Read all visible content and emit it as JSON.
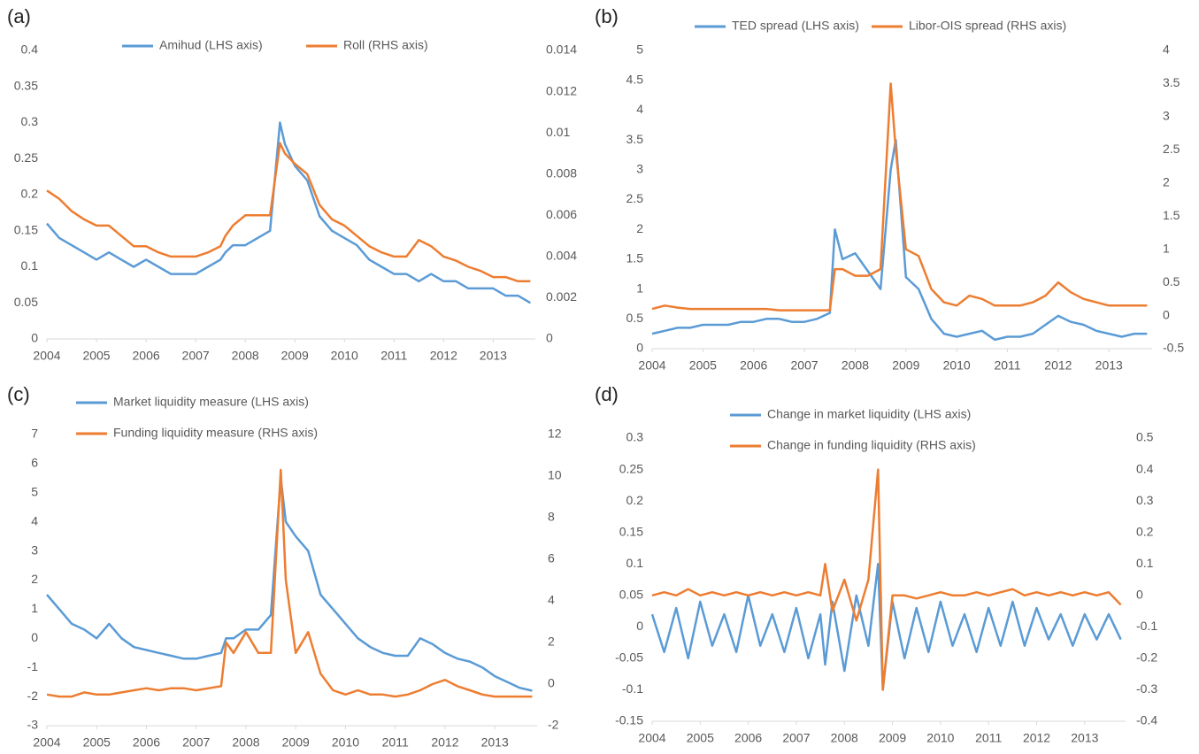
{
  "chart_data": [
    {
      "type": "line",
      "label": "(a)",
      "xlim": [
        2004,
        2013.85
      ],
      "xticks": [
        2004,
        2005,
        2006,
        2007,
        2008,
        2009,
        2010,
        2011,
        2012,
        2013
      ],
      "ylim": [
        0,
        0.4
      ],
      "yticks": [
        0,
        0.05,
        0.1,
        0.15,
        0.2,
        0.25,
        0.3,
        0.35,
        0.4
      ],
      "y2lim": [
        0,
        0.014
      ],
      "y2ticks": [
        0,
        0.002,
        0.004,
        0.006,
        0.008,
        0.01,
        0.012,
        0.014
      ],
      "x": [
        2004,
        2004.25,
        2004.5,
        2004.75,
        2005,
        2005.25,
        2005.5,
        2005.75,
        2006,
        2006.25,
        2006.5,
        2006.75,
        2007,
        2007.25,
        2007.5,
        2007.6,
        2007.75,
        2008,
        2008.25,
        2008.5,
        2008.7,
        2008.8,
        2009,
        2009.25,
        2009.5,
        2009.75,
        2010,
        2010.25,
        2010.5,
        2010.75,
        2011,
        2011.25,
        2011.5,
        2011.75,
        2012,
        2012.25,
        2012.5,
        2012.75,
        2013,
        2013.25,
        2013.5,
        2013.75
      ],
      "series": [
        {
          "name": "Amihud (LHS axis)",
          "color": "#5b9bd5",
          "values": [
            0.16,
            0.14,
            0.13,
            0.12,
            0.11,
            0.12,
            0.11,
            0.1,
            0.11,
            0.1,
            0.09,
            0.09,
            0.09,
            0.1,
            0.11,
            0.12,
            0.13,
            0.13,
            0.14,
            0.15,
            0.3,
            0.27,
            0.24,
            0.22,
            0.17,
            0.15,
            0.14,
            0.13,
            0.11,
            0.1,
            0.09,
            0.09,
            0.08,
            0.09,
            0.08,
            0.08,
            0.07,
            0.07,
            0.07,
            0.06,
            0.06,
            0.05
          ]
        },
        {
          "name": "Roll (RHS axis)",
          "color": "#ed7d31",
          "axis": "y2",
          "values": [
            0.0072,
            0.0068,
            0.0062,
            0.0058,
            0.0055,
            0.0055,
            0.005,
            0.0045,
            0.0045,
            0.0042,
            0.004,
            0.004,
            0.004,
            0.0042,
            0.0045,
            0.005,
            0.0055,
            0.006,
            0.006,
            0.006,
            0.0095,
            0.009,
            0.0085,
            0.008,
            0.0065,
            0.0058,
            0.0055,
            0.005,
            0.0045,
            0.0042,
            0.004,
            0.004,
            0.0048,
            0.0045,
            0.004,
            0.0038,
            0.0035,
            0.0033,
            0.003,
            0.003,
            0.0028,
            0.0028
          ]
        }
      ]
    },
    {
      "type": "line",
      "label": "(b)",
      "xlim": [
        2004,
        2013.85
      ],
      "xticks": [
        2004,
        2005,
        2006,
        2007,
        2008,
        2009,
        2010,
        2011,
        2012,
        2013
      ],
      "ylim": [
        0,
        5
      ],
      "yticks": [
        0,
        0.5,
        1,
        1.5,
        2,
        2.5,
        3,
        3.5,
        4,
        4.5,
        5
      ],
      "y2lim": [
        -0.5,
        4
      ],
      "y2ticks": [
        -0.5,
        0,
        0.5,
        1,
        1.5,
        2,
        2.5,
        3,
        3.5,
        4
      ],
      "x": [
        2004,
        2004.25,
        2004.5,
        2004.75,
        2005,
        2005.25,
        2005.5,
        2005.75,
        2006,
        2006.25,
        2006.5,
        2006.75,
        2007,
        2007.25,
        2007.5,
        2007.6,
        2007.75,
        2008,
        2008.25,
        2008.5,
        2008.7,
        2008.8,
        2009,
        2009.25,
        2009.5,
        2009.75,
        2010,
        2010.25,
        2010.5,
        2010.75,
        2011,
        2011.25,
        2011.5,
        2011.75,
        2012,
        2012.25,
        2012.5,
        2012.75,
        2013,
        2013.25,
        2013.5,
        2013.75
      ],
      "series": [
        {
          "name": "TED spread (LHS axis)",
          "color": "#5b9bd5",
          "values": [
            0.25,
            0.3,
            0.35,
            0.35,
            0.4,
            0.4,
            0.4,
            0.45,
            0.45,
            0.5,
            0.5,
            0.45,
            0.45,
            0.5,
            0.6,
            2.0,
            1.5,
            1.6,
            1.3,
            1.0,
            3.0,
            3.5,
            1.2,
            1.0,
            0.5,
            0.25,
            0.2,
            0.25,
            0.3,
            0.15,
            0.2,
            0.2,
            0.25,
            0.4,
            0.55,
            0.45,
            0.4,
            0.3,
            0.25,
            0.2,
            0.25,
            0.25
          ]
        },
        {
          "name": "Libor-OIS spread (RHS axis)",
          "color": "#ed7d31",
          "axis": "y2",
          "values": [
            0.1,
            0.15,
            0.12,
            0.1,
            0.1,
            0.1,
            0.1,
            0.1,
            0.1,
            0.1,
            0.08,
            0.08,
            0.08,
            0.08,
            0.08,
            0.7,
            0.7,
            0.6,
            0.6,
            0.7,
            3.5,
            2.5,
            1.0,
            0.9,
            0.4,
            0.2,
            0.15,
            0.3,
            0.25,
            0.15,
            0.15,
            0.15,
            0.2,
            0.3,
            0.5,
            0.35,
            0.25,
            0.2,
            0.15,
            0.15,
            0.15,
            0.15
          ]
        }
      ]
    },
    {
      "type": "line",
      "label": "(c)",
      "xlim": [
        2004,
        2013.85
      ],
      "xticks": [
        2004,
        2005,
        2006,
        2007,
        2008,
        2009,
        2010,
        2011,
        2012,
        2013
      ],
      "ylim": [
        -3,
        7
      ],
      "yticks": [
        -3,
        -2,
        -1,
        0,
        1,
        2,
        3,
        4,
        5,
        6,
        7
      ],
      "y2lim": [
        -2,
        12
      ],
      "y2ticks": [
        -2,
        0,
        2,
        4,
        6,
        8,
        10,
        12
      ],
      "x": [
        2004,
        2004.25,
        2004.5,
        2004.75,
        2005,
        2005.25,
        2005.5,
        2005.75,
        2006,
        2006.25,
        2006.5,
        2006.75,
        2007,
        2007.25,
        2007.5,
        2007.6,
        2007.75,
        2008,
        2008.25,
        2008.5,
        2008.7,
        2008.8,
        2009,
        2009.25,
        2009.5,
        2009.75,
        2010,
        2010.25,
        2010.5,
        2010.75,
        2011,
        2011.25,
        2011.5,
        2011.75,
        2012,
        2012.25,
        2012.5,
        2012.75,
        2013,
        2013.25,
        2013.5,
        2013.75
      ],
      "series": [
        {
          "name": "Market liquidity measure (LHS axis)",
          "color": "#5b9bd5",
          "values": [
            1.5,
            1.0,
            0.5,
            0.3,
            0.0,
            0.5,
            0.0,
            -0.3,
            -0.4,
            -0.5,
            -0.6,
            -0.7,
            -0.7,
            -0.6,
            -0.5,
            0,
            0.0,
            0.3,
            0.3,
            0.8,
            5.5,
            4.0,
            3.5,
            3.0,
            1.5,
            1.0,
            0.5,
            0.0,
            -0.3,
            -0.5,
            -0.6,
            -0.6,
            0.0,
            -0.2,
            -0.5,
            -0.7,
            -0.8,
            -1.0,
            -1.3,
            -1.5,
            -1.7,
            -1.8
          ]
        },
        {
          "name": "Funding liquidity measure (RHS axis)",
          "color": "#ed7d31",
          "axis": "y2",
          "values": [
            -0.5,
            -0.6,
            -0.6,
            -0.4,
            -0.5,
            -0.5,
            -0.4,
            -0.3,
            -0.2,
            -0.3,
            -0.2,
            -0.2,
            -0.3,
            -0.2,
            -0.1,
            2.0,
            1.5,
            2.5,
            1.5,
            1.5,
            10.3,
            5.0,
            1.5,
            2.5,
            0.5,
            -0.3,
            -0.5,
            -0.3,
            -0.5,
            -0.5,
            -0.6,
            -0.5,
            -0.3,
            0.0,
            0.2,
            -0.1,
            -0.3,
            -0.5,
            -0.6,
            -0.6,
            -0.6,
            -0.6
          ]
        }
      ]
    },
    {
      "type": "line",
      "label": "(d)",
      "xlim": [
        2004,
        2013.85
      ],
      "xticks": [
        2004,
        2005,
        2006,
        2007,
        2008,
        2009,
        2010,
        2011,
        2012,
        2013
      ],
      "ylim": [
        -0.15,
        0.3
      ],
      "yticks": [
        -0.15,
        -0.1,
        -0.05,
        0,
        0.05,
        0.1,
        0.15,
        0.2,
        0.25,
        0.3
      ],
      "y2lim": [
        -0.4,
        0.5
      ],
      "y2ticks": [
        -0.4,
        -0.3,
        -0.2,
        -0.1,
        0,
        0.1,
        0.2,
        0.3,
        0.4,
        0.5
      ],
      "x": [
        2004,
        2004.25,
        2004.5,
        2004.75,
        2005,
        2005.25,
        2005.5,
        2005.75,
        2006,
        2006.25,
        2006.5,
        2006.75,
        2007,
        2007.25,
        2007.5,
        2007.6,
        2007.75,
        2008,
        2008.25,
        2008.5,
        2008.7,
        2008.8,
        2009,
        2009.25,
        2009.5,
        2009.75,
        2010,
        2010.25,
        2010.5,
        2010.75,
        2011,
        2011.25,
        2011.5,
        2011.75,
        2012,
        2012.25,
        2012.5,
        2012.75,
        2013,
        2013.25,
        2013.5,
        2013.75
      ],
      "series": [
        {
          "name": "Change in market liquidity (LHS axis)",
          "color": "#5b9bd5",
          "values": [
            0.02,
            -0.04,
            0.03,
            -0.05,
            0.04,
            -0.03,
            0.02,
            -0.04,
            0.05,
            -0.03,
            0.02,
            -0.04,
            0.03,
            -0.05,
            0.02,
            -0.06,
            0.04,
            -0.07,
            0.05,
            -0.03,
            0.1,
            -0.1,
            0.04,
            -0.05,
            0.03,
            -0.04,
            0.04,
            -0.03,
            0.02,
            -0.04,
            0.03,
            -0.03,
            0.04,
            -0.03,
            0.03,
            -0.02,
            0.02,
            -0.03,
            0.02,
            -0.02,
            0.02,
            -0.02
          ]
        },
        {
          "name": "Change in funding liquidity (RHS axis)",
          "color": "#ed7d31",
          "axis": "y2",
          "values": [
            0,
            0.01,
            0,
            0.02,
            0,
            0.01,
            0,
            0.01,
            0,
            0.01,
            0,
            0.01,
            0,
            0.01,
            0,
            0.1,
            -0.05,
            0.05,
            -0.08,
            0.05,
            0.4,
            -0.3,
            0,
            0,
            -0.01,
            0,
            0.01,
            0,
            0,
            0.01,
            0,
            0.01,
            0.02,
            0,
            0.01,
            0,
            0.01,
            0,
            0.01,
            0,
            0.01,
            -0.03
          ]
        }
      ]
    }
  ]
}
